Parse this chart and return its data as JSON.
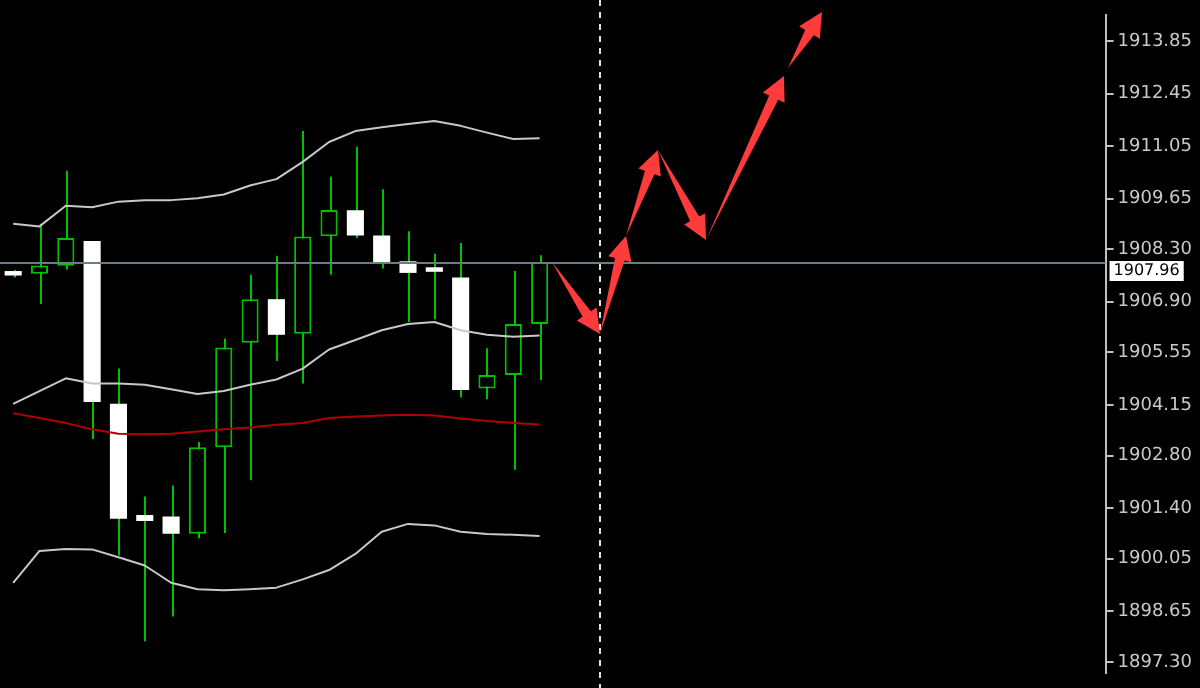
{
  "chart_data": {
    "type": "candlestick",
    "color": "#00c000",
    "colors": [
      "#ffffff",
      "#00c000",
      "#00c000",
      "#ffffff",
      "#ffffff",
      "#ffffff",
      "#ffffff",
      "#00c000",
      "#00c000",
      "#00c000",
      "#ffffff",
      "#00c000",
      "#00c000",
      "#ffffff",
      "#ffffff",
      "#ffffff",
      "#ffffff",
      "#ffffff",
      "#00c000",
      "#00c000",
      "#00c000",
      null,
      null,
      null,
      null,
      null,
      null,
      null,
      null,
      null,
      null,
      null,
      null,
      null,
      null,
      null,
      null,
      null,
      null,
      null,
      null,
      null
    ],
    "categories": [
      null,
      null,
      null,
      null,
      null,
      null,
      null,
      null,
      null,
      null,
      null,
      null,
      null,
      null,
      null,
      null,
      null,
      null,
      null,
      null,
      null,
      null,
      null,
      null,
      null,
      null,
      null,
      null,
      null,
      null,
      null,
      null,
      null,
      null,
      null,
      null,
      null,
      null,
      null,
      null,
      null,
      null
    ],
    "ohlc": [
      [
        1907.72,
        1907.75,
        1907.55,
        1907.6
      ],
      [
        1907.65,
        1908.98,
        1906.84,
        1907.87
      ],
      [
        1907.86,
        1910.39,
        1907.76,
        1908.6
      ],
      [
        1908.52,
        1908.52,
        1903.24,
        1904.23
      ],
      [
        1904.18,
        1905.12,
        1900.14,
        1901.12
      ],
      [
        1901.22,
        1901.71,
        1897.85,
        1901.06
      ],
      [
        1901.18,
        1902.0,
        1898.51,
        1900.72
      ],
      [
        1900.72,
        1903.16,
        1900.6,
        1903.02
      ],
      [
        1903.02,
        1905.92,
        1900.74,
        1905.68
      ],
      [
        1905.81,
        1907.62,
        1902.14,
        1906.97
      ],
      [
        1906.97,
        1908.13,
        1905.32,
        1906.02
      ],
      [
        1906.05,
        1911.45,
        1904.72,
        1908.64
      ],
      [
        1908.65,
        1910.24,
        1907.62,
        1909.35
      ],
      [
        1909.34,
        1911.03,
        1908.6,
        1908.67
      ],
      [
        1908.67,
        1909.9,
        1907.79,
        1907.96
      ],
      [
        1907.98,
        1908.78,
        1906.36,
        1907.67
      ],
      [
        1907.82,
        1908.18,
        1906.43,
        1907.7
      ],
      [
        1907.55,
        1908.47,
        1904.35,
        1904.55
      ],
      [
        1904.59,
        1905.66,
        1904.3,
        1904.95
      ],
      [
        1904.95,
        1907.72,
        1902.42,
        1906.31
      ],
      [
        1906.31,
        1908.14,
        1904.81,
        1907.96
      ],
      null,
      null,
      null,
      null,
      null,
      null,
      null,
      null,
      null,
      null,
      null,
      null,
      null,
      null,
      null,
      null,
      null,
      null,
      null,
      null,
      null
    ],
    "series": [
      {
        "type": "line",
        "color": "#c8c8c8",
        "values": [
          1908.98,
          1908.91,
          1909.46,
          1909.42,
          1909.57,
          1909.61,
          1909.61,
          1909.66,
          1909.76,
          1910.0,
          1910.17,
          1910.63,
          1911.16,
          1911.45,
          1911.55,
          1911.64,
          1911.72,
          1911.59,
          1911.41,
          1911.24,
          1911.26,
          null,
          null,
          null,
          null,
          null,
          null,
          null,
          null,
          null,
          null,
          null,
          null,
          null,
          null,
          null,
          null,
          null,
          null,
          null,
          null,
          null
        ]
      },
      {
        "type": "line",
        "color": "#c8c8c8",
        "values": [
          1904.18,
          1904.52,
          1904.86,
          1904.72,
          1904.72,
          1904.69,
          1904.57,
          1904.44,
          1904.52,
          1904.69,
          1904.83,
          1905.12,
          1905.63,
          1905.88,
          1906.14,
          1906.31,
          1906.36,
          1906.14,
          1906.02,
          1905.97,
          1906.0,
          null,
          null,
          null,
          null,
          null,
          null,
          null,
          null,
          null,
          null,
          null,
          null,
          null,
          null,
          null,
          null,
          null,
          null,
          null,
          null,
          null
        ]
      },
      {
        "type": "line",
        "color": "#b00000",
        "values": [
          1903.93,
          1903.8,
          1903.67,
          1903.5,
          1903.38,
          1903.37,
          1903.38,
          1903.44,
          1903.5,
          1903.55,
          1903.62,
          1903.67,
          1903.8,
          1903.84,
          1903.87,
          1903.89,
          1903.87,
          1903.79,
          1903.72,
          1903.67,
          1903.63,
          null,
          null,
          null,
          null,
          null,
          null,
          null,
          null,
          null,
          null,
          null,
          null,
          null,
          null,
          null,
          null,
          null,
          null,
          null,
          null,
          null
        ]
      },
      {
        "type": "line",
        "color": "#c8c8c8",
        "values": [
          1899.41,
          1900.26,
          1900.31,
          1900.3,
          1900.09,
          1899.87,
          1899.41,
          1899.24,
          1899.21,
          1899.24,
          1899.28,
          1899.5,
          1899.75,
          1900.18,
          1900.77,
          1900.98,
          1900.94,
          1900.77,
          1900.71,
          1900.69,
          1900.66,
          null,
          null,
          null,
          null,
          null,
          null,
          null,
          null,
          null,
          null,
          null,
          null,
          null,
          null,
          null,
          null,
          null,
          null,
          null,
          null,
          null
        ]
      }
    ],
    "ylim": [
      1897.0,
      1914.55
    ],
    "yticks": [
      {
        "value": 1897.3,
        "label": "1897.30"
      },
      {
        "value": 1898.65,
        "label": "1898.65"
      },
      {
        "value": 1900.05,
        "label": "1900.05"
      },
      {
        "value": 1901.4,
        "label": "1901.40"
      },
      {
        "value": 1902.8,
        "label": "1902.80"
      },
      {
        "value": 1904.15,
        "label": "1904.15"
      },
      {
        "value": 1905.55,
        "label": "1905.55"
      },
      {
        "value": 1906.9,
        "label": "1906.90"
      },
      {
        "value": 1908.3,
        "label": "1908.30"
      },
      {
        "value": 1909.65,
        "label": "1909.65"
      },
      {
        "value": 1911.05,
        "label": "1911.05"
      },
      {
        "value": 1912.45,
        "label": "1912.45"
      },
      {
        "value": 1913.85,
        "label": "1913.85"
      }
    ],
    "ref_lines": [
      {
        "axis": "y",
        "value": 1907.96,
        "label": "1907.96",
        "color": "#6c7b8b"
      }
    ],
    "grid": false,
    "legend": false,
    "tick_labels": "y"
  }
}
